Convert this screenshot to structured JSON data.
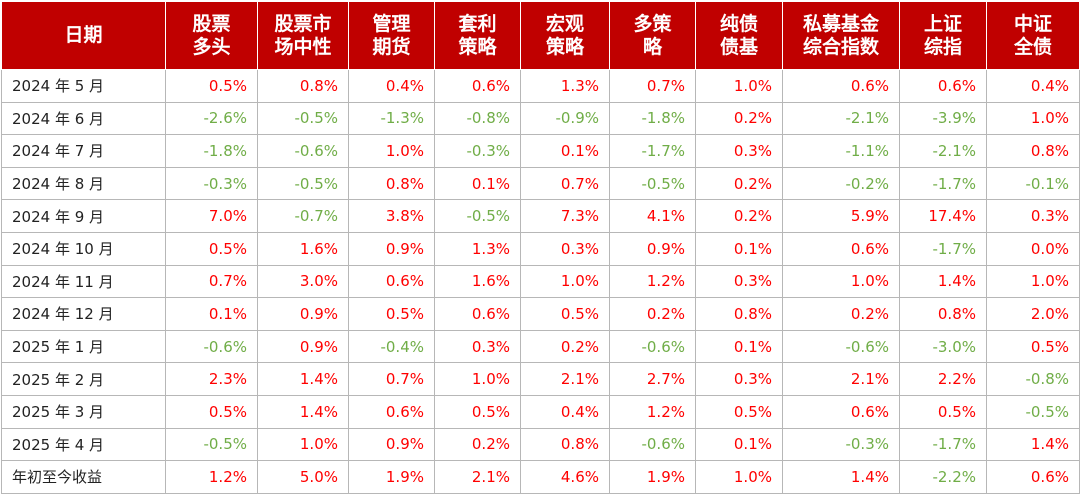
{
  "headers": [
    [
      "日期"
    ],
    [
      "股票",
      "多头"
    ],
    [
      "股票市",
      "场中性"
    ],
    [
      "管理",
      "期货"
    ],
    [
      "套利",
      "策略"
    ],
    [
      "宏观",
      "策略"
    ],
    [
      "多策",
      "略"
    ],
    [
      "纯债",
      "债基"
    ],
    [
      "私募基金",
      "综合指数"
    ],
    [
      "上证",
      "综指"
    ],
    [
      "中证",
      "全债"
    ]
  ],
  "rows": [
    {
      "date": "2024 年 5 月",
      "values": [
        "0.5%",
        "0.8%",
        "0.4%",
        "0.6%",
        "1.3%",
        "0.7%",
        "1.0%",
        "0.6%",
        "0.6%",
        "0.4%"
      ]
    },
    {
      "date": "2024 年 6 月",
      "values": [
        "-2.6%",
        "-0.5%",
        "-1.3%",
        "-0.8%",
        "-0.9%",
        "-1.8%",
        "0.2%",
        "-2.1%",
        "-3.9%",
        "1.0%"
      ]
    },
    {
      "date": "2024 年 7 月",
      "values": [
        "-1.8%",
        "-0.6%",
        "1.0%",
        "-0.3%",
        "0.1%",
        "-1.7%",
        "0.3%",
        "-1.1%",
        "-2.1%",
        "0.8%"
      ]
    },
    {
      "date": "2024 年 8 月",
      "values": [
        "-0.3%",
        "-0.5%",
        "0.8%",
        "0.1%",
        "0.7%",
        "-0.5%",
        "0.2%",
        "-0.2%",
        "-1.7%",
        "-0.1%"
      ]
    },
    {
      "date": "2024 年 9 月",
      "values": [
        "7.0%",
        "-0.7%",
        "3.8%",
        "-0.5%",
        "7.3%",
        "4.1%",
        "0.2%",
        "5.9%",
        "17.4%",
        "0.3%"
      ]
    },
    {
      "date": "2024 年 10 月",
      "values": [
        "0.5%",
        "1.6%",
        "0.9%",
        "1.3%",
        "0.3%",
        "0.9%",
        "0.1%",
        "0.6%",
        "-1.7%",
        "0.0%"
      ]
    },
    {
      "date": "2024 年 11 月",
      "values": [
        "0.7%",
        "3.0%",
        "0.6%",
        "1.6%",
        "1.0%",
        "1.2%",
        "0.3%",
        "1.0%",
        "1.4%",
        "1.0%"
      ]
    },
    {
      "date": "2024 年 12 月",
      "values": [
        "0.1%",
        "0.9%",
        "0.5%",
        "0.6%",
        "0.5%",
        "0.2%",
        "0.8%",
        "0.2%",
        "0.8%",
        "2.0%"
      ]
    },
    {
      "date": "2025 年 1 月",
      "values": [
        "-0.6%",
        "0.9%",
        "-0.4%",
        "0.3%",
        "0.2%",
        "-0.6%",
        "0.1%",
        "-0.6%",
        "-3.0%",
        "0.5%"
      ]
    },
    {
      "date": "2025 年 2 月",
      "values": [
        "2.3%",
        "1.4%",
        "0.7%",
        "1.0%",
        "2.1%",
        "2.7%",
        "0.3%",
        "2.1%",
        "2.2%",
        "-0.8%"
      ]
    },
    {
      "date": "2025 年 3 月",
      "values": [
        "0.5%",
        "1.4%",
        "0.6%",
        "0.5%",
        "0.4%",
        "1.2%",
        "0.5%",
        "0.6%",
        "0.5%",
        "-0.5%"
      ]
    },
    {
      "date": "2025 年 4 月",
      "values": [
        "-0.5%",
        "1.0%",
        "0.9%",
        "0.2%",
        "0.8%",
        "-0.6%",
        "0.1%",
        "-0.3%",
        "-1.7%",
        "1.4%"
      ]
    },
    {
      "date": "年初至今收益",
      "values": [
        "1.2%",
        "5.0%",
        "1.9%",
        "2.1%",
        "4.6%",
        "1.9%",
        "1.0%",
        "1.4%",
        "-2.2%",
        "0.6%"
      ]
    }
  ],
  "colors": {
    "header_bg": "#c00000",
    "positive": "#ff0000",
    "negative": "#70ad47"
  }
}
